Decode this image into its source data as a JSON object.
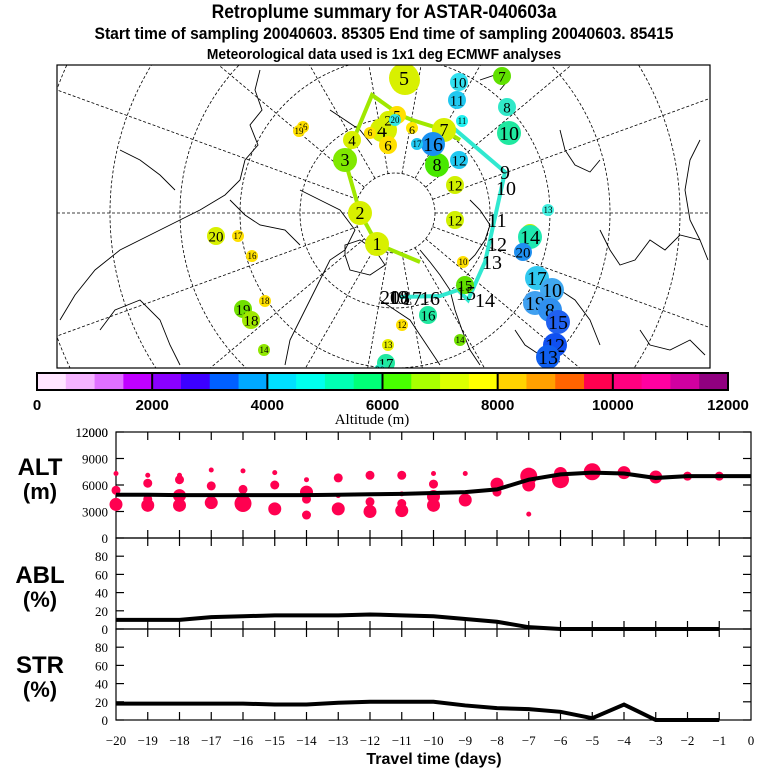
{
  "header": {
    "title": "Retroplume summary for ASTAR-040603a",
    "subtitle": "Start time of sampling 20040603. 85305     End time of sampling 20040603. 85415",
    "met_line": "Meteorological data used is 1x1 deg ECMWF analyses"
  },
  "colorbar": {
    "label": "Altitude (m)",
    "tick_labels": [
      "0",
      "2000",
      "4000",
      "6000",
      "8000",
      "10000",
      "12000"
    ],
    "range": [
      0,
      12000
    ],
    "colors": [
      "#ffe6ff",
      "#f5b4ff",
      "#e070ff",
      "#c000ff",
      "#8a00ff",
      "#3c00ff",
      "#0060ff",
      "#00a8ff",
      "#00e0ff",
      "#00ffee",
      "#00ffb4",
      "#00ff78",
      "#48ff00",
      "#a8ff00",
      "#dcff00",
      "#ffff00",
      "#ffd200",
      "#ffa000",
      "#ff6400",
      "#ff0050",
      "#ff0080",
      "#ff00a0",
      "#d000a0",
      "#900080"
    ]
  },
  "map": {
    "type": "polar-stereographic retroplume map",
    "trajectory_1_color": "#a0e800",
    "trajectory_2_color": "#30e8d0",
    "trajectory_1": [
      {
        "day": 1,
        "label": "1",
        "color": "#d8f000",
        "size": 3
      },
      {
        "day": 2,
        "label": "2",
        "color": "#d8f000",
        "size": 3
      },
      {
        "day": 3,
        "label": "3",
        "color": "#80e800",
        "size": 3
      },
      {
        "day": 4,
        "label": "4",
        "color": "#d8f000",
        "size": 3
      },
      {
        "day": 5,
        "label": "5",
        "color": "#d8f000",
        "size": 4
      },
      {
        "day": 6,
        "label": "6",
        "color": "#ffe800",
        "size": 1
      },
      {
        "day": 7,
        "label": "7",
        "color": "#d8f000",
        "size": 3
      },
      {
        "day": 8,
        "label": "8",
        "color": "#48e800",
        "size": 3
      }
    ],
    "cluster_labels": [
      {
        "label": "5",
        "color": "#d8f000",
        "size": 4
      },
      {
        "label": "5",
        "color": "#ffe000",
        "size": 2
      },
      {
        "label": "4",
        "color": "#d8f000",
        "size": 3
      },
      {
        "label": "4",
        "color": "#d8f000",
        "size": 2
      },
      {
        "label": "2",
        "color": "#d8f000",
        "size": 2
      },
      {
        "label": "20",
        "color": "#30e8e8",
        "size": 1
      },
      {
        "label": "6",
        "color": "#ffe000",
        "size": 2
      },
      {
        "label": "6",
        "color": "#ffe000",
        "size": 1
      },
      {
        "label": "7",
        "color": "#60e000",
        "size": 2
      },
      {
        "label": "8",
        "color": "#30e8c8",
        "size": 2
      },
      {
        "label": "10",
        "color": "#20e8a0",
        "size": 3
      },
      {
        "label": "10",
        "color": "#30e0f0",
        "size": 2
      },
      {
        "label": "11",
        "color": "#20c8f0",
        "size": 2
      },
      {
        "label": "11",
        "color": "#20f0f0",
        "size": 1
      },
      {
        "label": "12",
        "color": "#20c8f0",
        "size": 2
      },
      {
        "label": "16",
        "color": "#1890f0",
        "size": 3
      },
      {
        "label": "17",
        "color": "#20c8f0",
        "size": 1
      },
      {
        "label": "12",
        "color": "#d0f000",
        "size": 2
      },
      {
        "label": "12",
        "color": "#d0f000",
        "size": 2
      },
      {
        "label": "13",
        "color": "#40f0e0",
        "size": 1
      },
      {
        "label": "13",
        "color": "#c8f000",
        "size": 2
      },
      {
        "label": "14",
        "color": "#20e8b0",
        "size": 3
      },
      {
        "label": "20",
        "color": "#2090f0",
        "size": 2
      },
      {
        "label": "17",
        "color": "#30c8f0",
        "size": 3
      },
      {
        "label": "10",
        "color": "#40a8f0",
        "size": 3
      },
      {
        "label": "19",
        "color": "#40a0f0",
        "size": 3
      },
      {
        "label": "8",
        "color": "#3090f0",
        "size": 3
      },
      {
        "label": "15",
        "color": "#2060f0",
        "size": 3
      },
      {
        "label": "12",
        "color": "#1050f0",
        "size": 3
      },
      {
        "label": "13",
        "color": "#1060f0",
        "size": 3
      },
      {
        "label": "15",
        "color": "#60e000",
        "size": 2
      },
      {
        "label": "16",
        "color": "#20e8a0",
        "size": 2
      },
      {
        "label": "14",
        "color": "#70e000",
        "size": 1
      },
      {
        "label": "13",
        "color": "#e8f000",
        "size": 1
      },
      {
        "label": "17",
        "color": "#20e8a0",
        "size": 2
      },
      {
        "label": "20",
        "color": "#20e8c0",
        "size": 1
      },
      {
        "label": "14",
        "color": "#90e800",
        "size": 1
      },
      {
        "label": "19",
        "color": "#70e000",
        "size": 2
      },
      {
        "label": "18",
        "color": "#a0e800",
        "size": 2
      },
      {
        "label": "18",
        "color": "#ffe000",
        "size": 1
      },
      {
        "label": "20",
        "color": "#d8f000",
        "size": 2
      },
      {
        "label": "17",
        "color": "#ffe000",
        "size": 1
      },
      {
        "label": "16",
        "color": "#ffe000",
        "size": 1
      },
      {
        "label": "16",
        "color": "#ffe000",
        "size": 1
      },
      {
        "label": "19",
        "color": "#ffe000",
        "size": 1
      },
      {
        "label": "12",
        "color": "#ffe000",
        "size": 1
      },
      {
        "label": "10",
        "color": "#ffe000",
        "size": 1
      }
    ],
    "trajectory_2_labels": [
      "9",
      "10",
      "11",
      "12",
      "13",
      "14",
      "15",
      "16",
      "17",
      "18",
      "19",
      "20"
    ]
  },
  "chart_data": [
    {
      "type": "scatter+line",
      "panel": "ALT",
      "ylabel": "ALT\n(m)",
      "ylabel_line1": "ALT",
      "ylabel_line2": "(m)",
      "ylim": [
        0,
        12000
      ],
      "yticks": [
        0,
        3000,
        6000,
        9000,
        12000
      ],
      "ytick_labels": [
        "0",
        "3000",
        "6000",
        "9000",
        "12000"
      ],
      "xlim": [
        -20,
        0
      ],
      "line": {
        "x": [
          -20,
          -19,
          -18,
          -17,
          -16,
          -15,
          -14,
          -13,
          -12,
          -11,
          -10,
          -9,
          -8,
          -7,
          -6,
          -5,
          -4,
          -3,
          -2,
          -1,
          0
        ],
        "y": [
          4900,
          4900,
          4850,
          4850,
          4850,
          4850,
          4850,
          4900,
          4950,
          5000,
          5100,
          5200,
          5500,
          6600,
          7200,
          7400,
          7300,
          6800,
          7000,
          7000,
          7000
        ]
      },
      "clusters": [
        {
          "x": -20,
          "y": [
            7300,
            5400,
            3800
          ],
          "size": [
            1,
            2,
            3
          ]
        },
        {
          "x": -19,
          "y": [
            7100,
            6200,
            4400,
            3700
          ],
          "size": [
            1,
            2,
            2,
            3
          ]
        },
        {
          "x": -18,
          "y": [
            7100,
            6600,
            4800,
            3700
          ],
          "size": [
            1,
            2,
            3,
            3
          ]
        },
        {
          "x": -17,
          "y": [
            7700,
            5900,
            4000
          ],
          "size": [
            1,
            2,
            3
          ]
        },
        {
          "x": -16,
          "y": [
            7600,
            5500,
            3900
          ],
          "size": [
            1,
            2,
            4
          ]
        },
        {
          "x": -15,
          "y": [
            7400,
            6000,
            3300
          ],
          "size": [
            1,
            2,
            3
          ]
        },
        {
          "x": -14,
          "y": [
            6600,
            5200,
            4400,
            2600
          ],
          "size": [
            1,
            3,
            2,
            2
          ]
        },
        {
          "x": -13,
          "y": [
            6800,
            4800,
            3300
          ],
          "size": [
            2,
            1,
            3
          ]
        },
        {
          "x": -12,
          "y": [
            7100,
            4100,
            3000
          ],
          "size": [
            2,
            2,
            3
          ]
        },
        {
          "x": -11,
          "y": [
            7100,
            5000,
            3900,
            3100
          ],
          "size": [
            2,
            1,
            2,
            3
          ]
        },
        {
          "x": -10,
          "y": [
            7300,
            6100,
            4700,
            3700
          ],
          "size": [
            1,
            2,
            3,
            3
          ]
        },
        {
          "x": -9,
          "y": [
            7300,
            4300
          ],
          "size": [
            1,
            3
          ]
        },
        {
          "x": -8,
          "y": [
            6100,
            5200
          ],
          "size": [
            3,
            2
          ]
        },
        {
          "x": -7,
          "y": [
            7000,
            6000,
            2700
          ],
          "size": [
            4,
            3,
            1
          ]
        },
        {
          "x": -6,
          "y": [
            7300,
            6600
          ],
          "size": [
            3,
            4
          ]
        },
        {
          "x": -5,
          "y": [
            7500
          ],
          "size": [
            4
          ]
        },
        {
          "x": -4,
          "y": [
            7400
          ],
          "size": [
            3
          ]
        },
        {
          "x": -3,
          "y": [
            6900
          ],
          "size": [
            3
          ]
        },
        {
          "x": -2,
          "y": [
            7000
          ],
          "size": [
            2
          ]
        },
        {
          "x": -1,
          "y": [
            7000
          ],
          "size": [
            2
          ]
        }
      ],
      "marker_color": "#ff0050"
    },
    {
      "type": "line",
      "panel": "ABL",
      "ylabel_line1": "ABL",
      "ylabel_line2": "(%)",
      "ylim": [
        0,
        100
      ],
      "yticks": [
        0,
        20,
        40,
        60,
        80
      ],
      "ytick_labels": [
        "0",
        "20",
        "40",
        "60",
        "80"
      ],
      "xlim": [
        -20,
        0
      ],
      "x": [
        -20,
        -19,
        -18,
        -17,
        -16,
        -15,
        -14,
        -13,
        -12,
        -11,
        -10,
        -9,
        -8,
        -7,
        -6,
        -5,
        -4,
        -3,
        -2,
        -1
      ],
      "y": [
        10,
        10,
        10,
        13,
        14,
        15,
        15,
        15,
        16,
        15,
        14,
        11,
        8,
        2,
        0,
        0,
        0,
        0,
        0,
        0
      ]
    },
    {
      "type": "line",
      "panel": "STR",
      "ylabel_line1": "STR",
      "ylabel_line2": "(%)",
      "ylim": [
        0,
        100
      ],
      "yticks": [
        0,
        20,
        40,
        60,
        80
      ],
      "ytick_labels": [
        "0",
        "20",
        "40",
        "60",
        "80"
      ],
      "xlim": [
        -20,
        0
      ],
      "xlabel": "Travel time (days)",
      "xticks": [
        -20,
        -19,
        -18,
        -17,
        -16,
        -15,
        -14,
        -13,
        -12,
        -11,
        -10,
        -9,
        -8,
        -7,
        -6,
        -5,
        -4,
        -3,
        -2,
        -1,
        0
      ],
      "xtick_labels": [
        "−20",
        "−19",
        "−18",
        "−17",
        "−16",
        "−15",
        "−14",
        "−13",
        "−12",
        "−11",
        "−10",
        "−9",
        "−8",
        "−7",
        "−6",
        "−5",
        "−4",
        "−3",
        "−2",
        "−1",
        "0"
      ],
      "x": [
        -20,
        -19,
        -18,
        -17,
        -16,
        -15,
        -14,
        -13,
        -12,
        -11,
        -10,
        -9,
        -8,
        -7,
        -6,
        -5,
        -4,
        -3,
        -2,
        -1
      ],
      "y": [
        18,
        18,
        18,
        18,
        18,
        17,
        17,
        19,
        20,
        20,
        20,
        16,
        13,
        12,
        9,
        2,
        17,
        0,
        0,
        0
      ]
    }
  ]
}
